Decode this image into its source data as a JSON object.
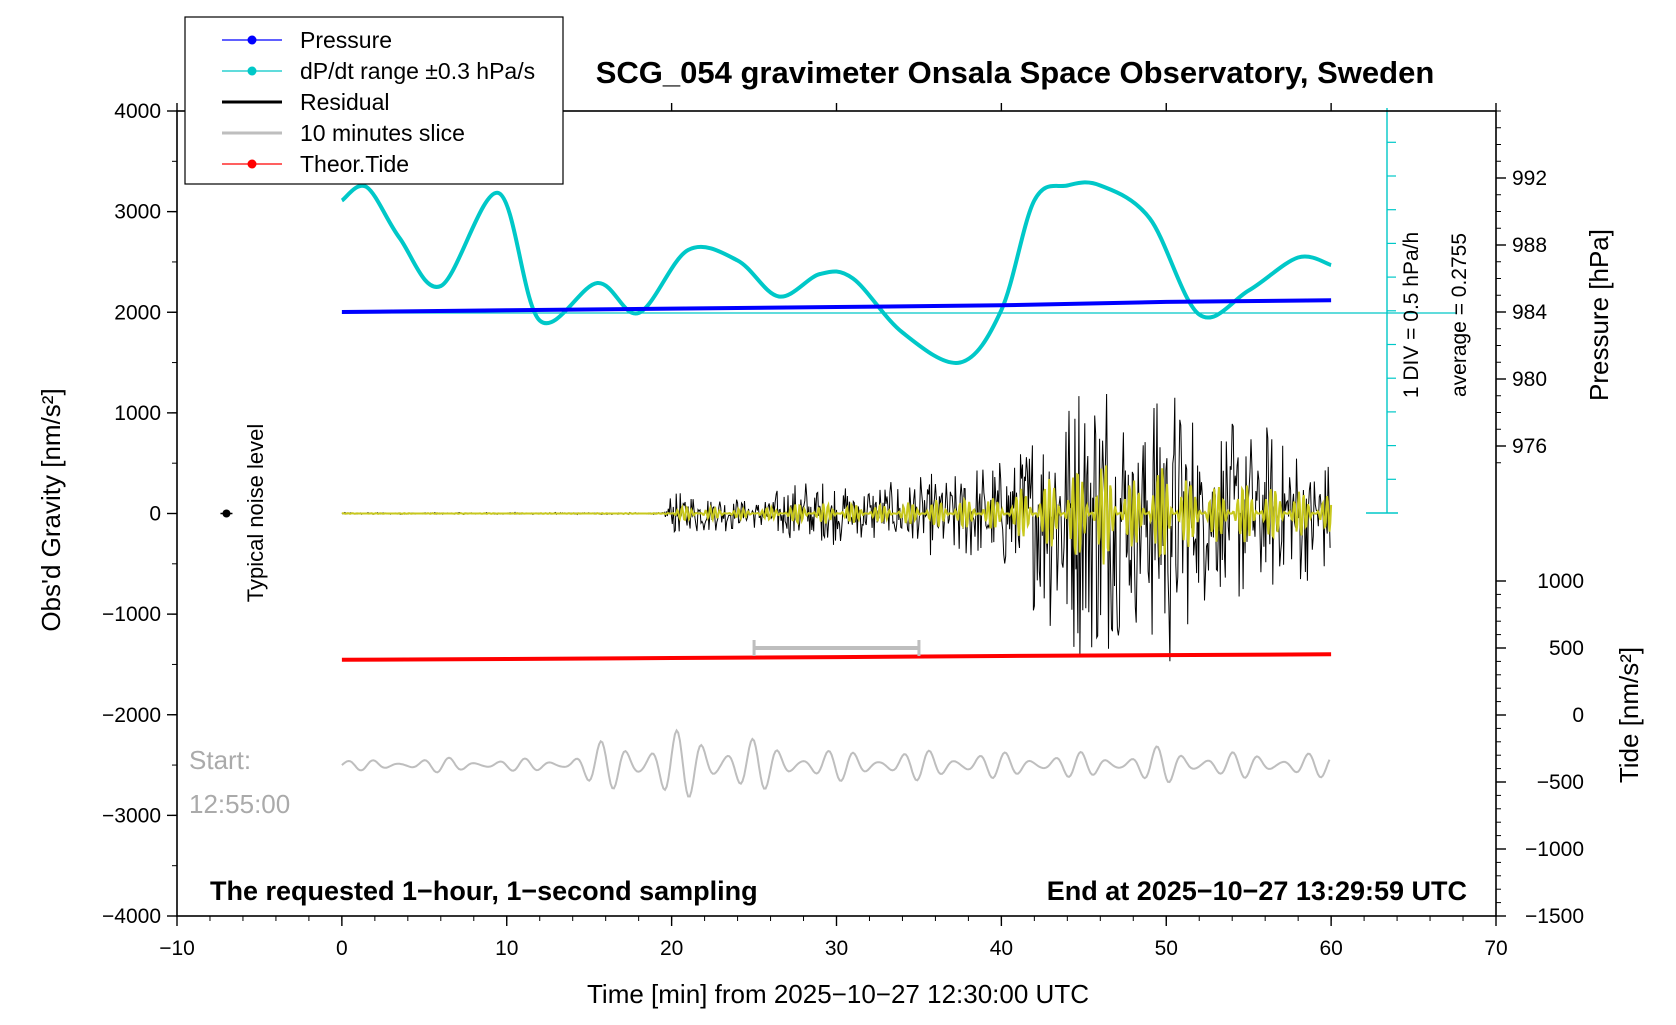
{
  "chart_data": {
    "type": "line",
    "title": "SCG_054 gravimeter Onsala Space Observatory, Sweden",
    "xlabel": "Time [min] from 2025−10−27 12:30:00 UTC",
    "ylabel_left": "Obs'd Gravity [nm/s²]",
    "ylabel_right_pressure": "Pressure [hPa]",
    "ylabel_right_tide": "Tide [nm/s²]",
    "xlim": [
      -10,
      70
    ],
    "ylim": [
      -4000,
      4000
    ],
    "grid": false,
    "legend_position": "top-left",
    "x_ticks": [
      "−10",
      "0",
      "10",
      "20",
      "30",
      "40",
      "50",
      "60",
      "70"
    ],
    "y_ticks_left": [
      "4000",
      "3000",
      "2000",
      "1000",
      "0",
      "−1000",
      "−2000",
      "−3000",
      "−4000"
    ],
    "y_ticks_pressure": [
      "992",
      "988",
      "984",
      "980",
      "976"
    ],
    "y_ticks_tide": [
      "1000",
      "500",
      "0",
      "−500",
      "−1000",
      "−1500"
    ],
    "legend": [
      {
        "label": "Pressure",
        "color": "#0000ff",
        "marker": true
      },
      {
        "label": "dP/dt range ±0.3 hPa/s",
        "color": "#00c8c8",
        "marker": true
      },
      {
        "label": "Residual",
        "color": "#000000",
        "marker": false
      },
      {
        "label": "10 minutes slice",
        "color": "#bebebe",
        "marker": false
      },
      {
        "label": "Theor.Tide",
        "color": "#ff0000",
        "marker": true
      }
    ],
    "annotations": {
      "noise_label": "Typical noise level",
      "start_label": "Start:",
      "start_time": "12:55:00",
      "footer_left": "The requested 1−hour, 1−second sampling",
      "footer_right": "End at 2025−10−27 13:29:59 UTC",
      "scale_div": "1 DIV = 0.5 hPa/h",
      "scale_avg": "average = 0.2755"
    },
    "pressure_series": {
      "name": "Pressure",
      "unit": "hPa",
      "x": [
        0,
        10,
        20,
        30,
        40,
        50,
        60
      ],
      "values": [
        984.0,
        984.1,
        984.2,
        984.3,
        984.4,
        984.6,
        984.7
      ]
    },
    "dpdt_series": {
      "name": "dP/dt range ±0.3 hPa/s",
      "unit": "hPa/h",
      "x": [
        0,
        1.5,
        3.5,
        6,
        9.5,
        12,
        15.5,
        18,
        21,
        24,
        26.5,
        29,
        31,
        34,
        37.5,
        40,
        42,
        44,
        46,
        49,
        52,
        55,
        58,
        60
      ],
      "values": [
        0.75,
        0.84,
        0.5,
        0.18,
        0.8,
        -0.05,
        0.2,
        0.0,
        0.42,
        0.35,
        0.11,
        0.26,
        0.23,
        -0.13,
        -0.33,
        0.02,
        0.75,
        0.85,
        0.85,
        0.63,
        -0.01,
        0.15,
        0.37,
        0.32
      ]
    },
    "residual_envelope": {
      "name": "Residual",
      "unit": "nm/s²",
      "x": [
        0,
        19.5,
        20,
        25,
        28,
        33,
        36,
        40,
        42,
        44,
        46,
        48,
        50,
        52,
        55,
        60
      ],
      "amplitude": [
        10,
        10,
        250,
        150,
        350,
        300,
        450,
        550,
        1000,
        1400,
        1800,
        1100,
        1700,
        900,
        1000,
        600
      ]
    },
    "slice_series": {
      "name": "10 minutes slice",
      "start": "12:55:00",
      "x_range": [
        25,
        35
      ],
      "offset": -2500,
      "amplitude_envelope": [
        50,
        60,
        80,
        60,
        80,
        300,
        350,
        350,
        200,
        160,
        140,
        170,
        130,
        140,
        120,
        200,
        130,
        140,
        120
      ]
    },
    "tide_series": {
      "name": "Theor.Tide",
      "unit": "nm/s²",
      "x": [
        0,
        10,
        20,
        30,
        40,
        50,
        60
      ],
      "values": [
        412,
        418,
        425,
        432,
        440,
        447,
        453
      ]
    },
    "noise_level": {
      "x": -7,
      "y": 0,
      "error": 30
    }
  }
}
